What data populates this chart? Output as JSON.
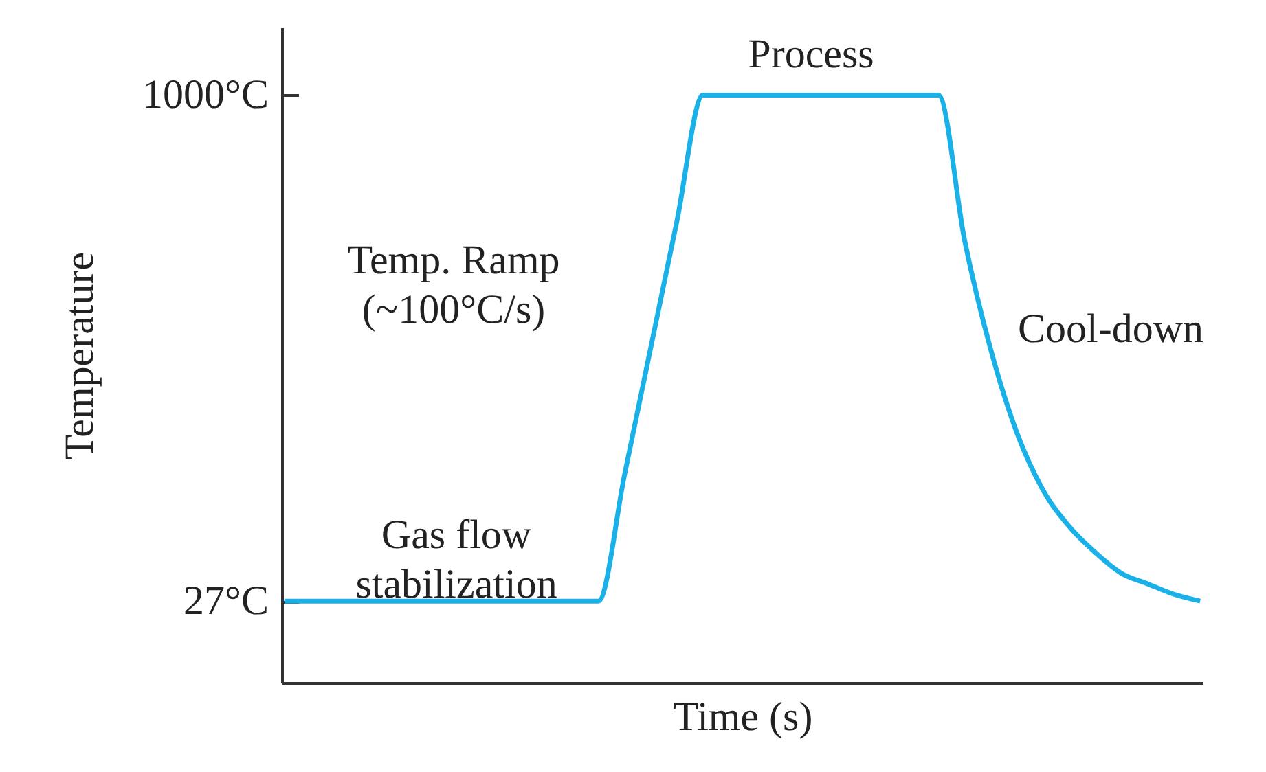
{
  "chart_data": {
    "type": "line",
    "xlabel": "Time (s)",
    "ylabel": "Temperature",
    "categories": [
      null,
      null,
      null,
      null,
      null,
      null,
      null,
      null,
      null,
      null,
      null,
      null,
      null,
      null,
      null,
      null,
      null,
      null,
      null,
      null,
      null,
      null,
      null,
      null,
      null,
      null,
      null,
      null,
      null,
      null,
      null,
      null,
      null,
      null,
      null,
      null
    ],
    "series": [
      {
        "color": "#1ab0e8",
        "values": [
          27,
          27,
          27,
          27,
          27,
          27,
          27,
          27,
          27,
          27,
          27,
          27,
          27,
          270,
          514,
          757,
          1000,
          1000,
          1000,
          1000,
          1000,
          1000,
          1000,
          1000,
          1000,
          1000,
          720,
          510,
          350,
          240,
          170,
          120,
          80,
          60,
          40,
          27
        ]
      }
    ],
    "ylim": [
      -130,
      1130
    ],
    "yticks": [
      {
        "value": 27,
        "label": "27°C"
      },
      {
        "value": 1000,
        "label": "1000°C"
      }
    ],
    "grid": false,
    "marker": "none",
    "line_style": "solid",
    "annotations": [
      "Process",
      "Temp. Ramp\n(~100°C/s)",
      "Cool-down",
      "Gas flow\nstabilization"
    ]
  }
}
